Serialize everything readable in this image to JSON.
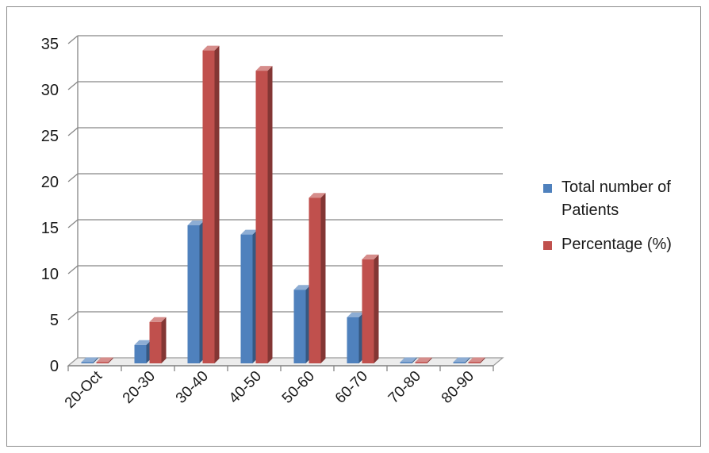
{
  "chart_data": {
    "type": "bar",
    "style": "3d-clustered-column",
    "categories": [
      "20-Oct",
      "20-30",
      "30-40",
      "40-50",
      "50-60",
      "60-70",
      "70-80",
      "80-90"
    ],
    "series": [
      {
        "name": "Total number of Patients",
        "color": "#4f81bd",
        "values": [
          0,
          2,
          15,
          14,
          8,
          5,
          0,
          0
        ]
      },
      {
        "name": "Percentage (%)",
        "color": "#c0504d",
        "values": [
          0,
          4.5,
          34,
          31.8,
          18,
          11.3,
          0,
          0
        ]
      }
    ],
    "title": "",
    "xlabel": "",
    "ylabel": "",
    "ylim": [
      0,
      35
    ],
    "yticks": [
      "0",
      "5",
      "10",
      "15",
      "20",
      "25",
      "30",
      "35"
    ],
    "grid": true,
    "legend_position": "right"
  }
}
